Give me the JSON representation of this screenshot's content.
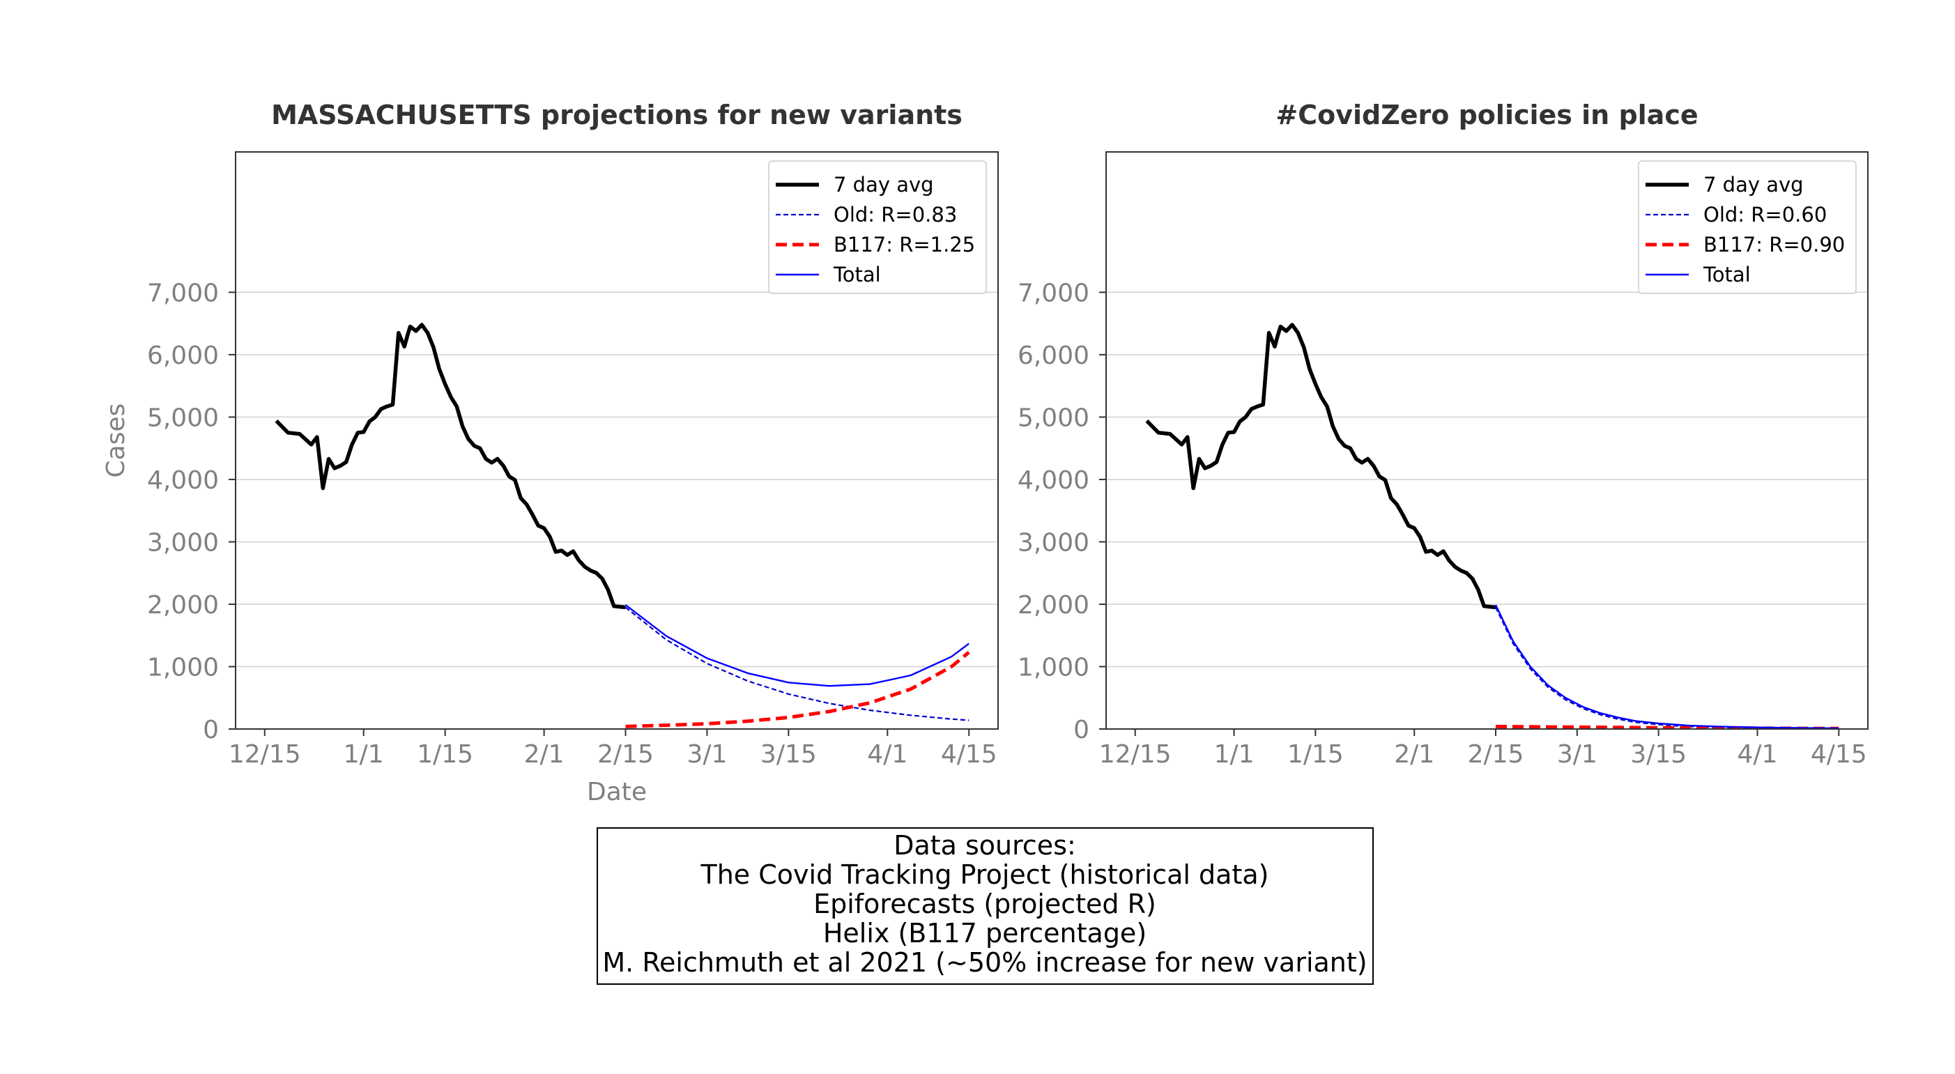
{
  "chart_data": [
    {
      "type": "line",
      "title": "MASSACHUSETTS projections for new variants",
      "xlabel": "Date",
      "ylabel": "Cases",
      "ylim": [
        0,
        7000
      ],
      "y_ticks": [
        0,
        1000,
        2000,
        3000,
        4000,
        5000,
        6000,
        7000
      ],
      "y_tick_labels": [
        "0",
        "1,000",
        "2,000",
        "3,000",
        "4,000",
        "5,000",
        "6,000",
        "7,000"
      ],
      "x_ticks": [
        0,
        17,
        31,
        48,
        62,
        76,
        90,
        107,
        121
      ],
      "x_tick_labels": [
        "12/15",
        "1/1",
        "1/15",
        "2/1",
        "2/15",
        "3/1",
        "3/15",
        "4/1",
        "4/15"
      ],
      "grid": "horizontal",
      "legend_position": "upper right",
      "series": [
        {
          "name": "7 day avg",
          "style": "solid thick",
          "color": "#000000",
          "x": [
            2,
            4,
            6,
            8,
            9,
            10,
            11,
            12,
            13,
            14,
            15,
            16,
            17,
            18,
            19,
            20,
            21,
            22,
            23,
            24,
            24.5,
            25,
            26,
            27,
            28,
            29,
            30,
            31,
            32,
            33,
            34,
            35,
            36,
            37,
            38,
            39,
            40,
            41,
            42,
            43,
            44,
            45,
            46,
            47,
            48,
            49,
            50,
            51,
            52,
            53,
            54,
            55,
            56,
            57,
            58,
            59,
            60,
            61,
            62
          ],
          "y": [
            4940,
            4750,
            4730,
            4560,
            4680,
            3860,
            4330,
            4180,
            4220,
            4280,
            4560,
            4750,
            4760,
            4930,
            5000,
            5130,
            5170,
            5200,
            6350,
            6130,
            6300,
            6450,
            6380,
            6480,
            6350,
            6120,
            5770,
            5530,
            5320,
            5170,
            4850,
            4650,
            4540,
            4500,
            4330,
            4270,
            4330,
            4220,
            4050,
            3990,
            3700,
            3600,
            3440,
            3260,
            3220,
            3080,
            2840,
            2860,
            2790,
            2850,
            2700,
            2600,
            2540,
            2500,
            2410,
            2230,
            1970,
            1960,
            1950
          ]
        },
        {
          "name": "Old: R=0.83",
          "style": "dashed thin",
          "color": "#0000cc",
          "x": [
            62,
            69,
            76,
            83,
            90,
            97,
            104,
            111,
            118,
            121
          ],
          "y": [
            1950,
            1430,
            1050,
            770,
            560,
            410,
            300,
            220,
            160,
            140
          ]
        },
        {
          "name": "B117: R=1.25",
          "style": "dashed thick",
          "color": "#ff0000",
          "x": [
            62,
            69,
            76,
            83,
            90,
            97,
            104,
            111,
            118,
            121
          ],
          "y": [
            40,
            60,
            85,
            125,
            185,
            280,
            420,
            640,
            1000,
            1230
          ]
        },
        {
          "name": "Total",
          "style": "solid thin",
          "color": "#0000ff",
          "x": [
            62,
            69,
            76,
            83,
            90,
            97,
            104,
            111,
            118,
            121
          ],
          "y": [
            1990,
            1490,
            1135,
            895,
            745,
            690,
            720,
            860,
            1160,
            1370
          ]
        }
      ]
    },
    {
      "type": "line",
      "title": "#CovidZero policies in place",
      "xlabel": "",
      "ylabel": "",
      "ylim": [
        0,
        7000
      ],
      "y_ticks": [
        0,
        1000,
        2000,
        3000,
        4000,
        5000,
        6000,
        7000
      ],
      "y_tick_labels": [
        "0",
        "1,000",
        "2,000",
        "3,000",
        "4,000",
        "5,000",
        "6,000",
        "7,000"
      ],
      "x_ticks": [
        0,
        17,
        31,
        48,
        62,
        76,
        90,
        107,
        121
      ],
      "x_tick_labels": [
        "12/15",
        "1/1",
        "1/15",
        "2/1",
        "2/15",
        "3/1",
        "3/15",
        "4/1",
        "4/15"
      ],
      "grid": "horizontal",
      "legend_position": "upper right",
      "series": [
        {
          "name": "7 day avg",
          "style": "solid thick",
          "color": "#000000",
          "x": [
            2,
            4,
            6,
            8,
            9,
            10,
            11,
            12,
            13,
            14,
            15,
            16,
            17,
            18,
            19,
            20,
            21,
            22,
            23,
            24,
            24.5,
            25,
            26,
            27,
            28,
            29,
            30,
            31,
            32,
            33,
            34,
            35,
            36,
            37,
            38,
            39,
            40,
            41,
            42,
            43,
            44,
            45,
            46,
            47,
            48,
            49,
            50,
            51,
            52,
            53,
            54,
            55,
            56,
            57,
            58,
            59,
            60,
            61,
            62
          ],
          "y": [
            4940,
            4750,
            4730,
            4560,
            4680,
            3860,
            4330,
            4180,
            4220,
            4280,
            4560,
            4750,
            4760,
            4930,
            5000,
            5130,
            5170,
            5200,
            6350,
            6130,
            6300,
            6450,
            6380,
            6480,
            6350,
            6120,
            5770,
            5530,
            5320,
            5170,
            4850,
            4650,
            4540,
            4500,
            4330,
            4270,
            4330,
            4220,
            4050,
            3990,
            3700,
            3600,
            3440,
            3260,
            3220,
            3080,
            2840,
            2860,
            2790,
            2850,
            2700,
            2600,
            2540,
            2500,
            2410,
            2230,
            1970,
            1960,
            1950
          ]
        },
        {
          "name": "Old: R=0.60",
          "style": "dashed thin",
          "color": "#0000cc",
          "x": [
            62,
            65,
            68,
            71,
            74,
            77,
            80,
            83,
            86,
            90,
            95,
            100,
            107,
            114,
            121
          ],
          "y": [
            1950,
            1370,
            960,
            670,
            470,
            330,
            230,
            160,
            110,
            70,
            40,
            25,
            12,
            6,
            3
          ]
        },
        {
          "name": "B117: R=0.90",
          "style": "dashed thick",
          "color": "#ff0000",
          "x": [
            62,
            69,
            76,
            83,
            90,
            97,
            104,
            111,
            121
          ],
          "y": [
            40,
            35,
            30,
            25,
            20,
            17,
            14,
            11,
            8
          ]
        },
        {
          "name": "Total",
          "style": "solid thin",
          "color": "#0000ff",
          "x": [
            62,
            65,
            68,
            71,
            74,
            77,
            80,
            83,
            86,
            90,
            95,
            100,
            107,
            114,
            121
          ],
          "y": [
            1990,
            1405,
            995,
            700,
            500,
            355,
            255,
            185,
            130,
            90,
            57,
            40,
            26,
            17,
            11
          ]
        }
      ]
    }
  ],
  "sources_box": {
    "lines": [
      "Data sources:",
      "The Covid Tracking Project (historical data)",
      "Epiforecasts (projected R)",
      "Helix (B117 percentage)",
      "M. Reichmuth et al 2021 (~50% increase for new variant)"
    ]
  }
}
